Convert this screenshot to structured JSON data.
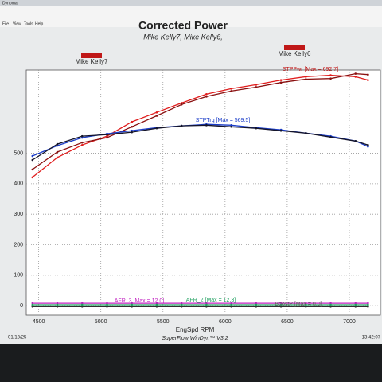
{
  "window_title": "Dynomat",
  "menu": [
    "File",
    "View",
    "Tools",
    "Help"
  ],
  "footer": {
    "date": "01/13/25",
    "software": "SuperFlow WinDyn™ V3.2",
    "time": "13:42:07"
  },
  "chart_data": {
    "type": "line",
    "title": "Corrected Power",
    "subtitle": "Mike Kelly7, Mike Kelly6,",
    "x_label": "EngSpd RPM",
    "legend": [
      {
        "name": "Mike Kelly7",
        "color": "#c01818"
      },
      {
        "name": "Mike Kelly6",
        "color": "#c01818"
      }
    ],
    "x": [
      4450,
      4650,
      4850,
      5050,
      5250,
      5450,
      5650,
      5850,
      6050,
      6250,
      6450,
      6650,
      6850,
      7050,
      7150
    ],
    "series": [
      {
        "color": "#e01c1c",
        "values": [
          421,
          486,
          527,
          556,
          603,
          634,
          665,
          694,
          712,
          725,
          740,
          751,
          756,
          751,
          740
        ]
      },
      {
        "color": "#8a1010",
        "values": [
          447,
          504,
          535,
          551,
          587,
          623,
          660,
          686,
          704,
          717,
          732,
          743,
          745,
          761,
          758
        ]
      },
      {
        "color": "#1a3cc8",
        "values": [
          491,
          525,
          551,
          564,
          574,
          584,
          590,
          595,
          592,
          584,
          577,
          566,
          556,
          540,
          522
        ]
      },
      {
        "color": "#15152a",
        "values": [
          478,
          530,
          556,
          561,
          569,
          582,
          590,
          592,
          587,
          582,
          574,
          566,
          553,
          540,
          527
        ]
      },
      {
        "color": "#c020c0",
        "values": [
          8,
          8,
          8,
          8,
          8,
          8,
          8,
          8,
          8,
          8,
          8,
          8,
          8,
          8,
          8
        ]
      },
      {
        "color": "#20a060",
        "values": [
          3,
          3,
          3,
          3,
          3,
          3,
          3,
          3,
          3,
          3,
          3,
          3,
          3,
          3,
          3
        ]
      },
      {
        "color": "#303030",
        "values": [
          -3,
          -3,
          -3,
          -3,
          -3,
          -3,
          -3,
          -3,
          -3,
          -3,
          -3,
          -3,
          -3,
          -3,
          -3
        ]
      }
    ],
    "annotations": [
      {
        "text": "STPPwr [Max = 692.7]",
        "color": "#c01818"
      },
      {
        "text": "STPTrq [Max = 569.5]",
        "color": "#1a3cc8"
      },
      {
        "text": "AFR_3 [Max = 12.0]",
        "color": "#c020c0"
      },
      {
        "text": "AFR_2 [Max = 12.3]",
        "color": "#20a060"
      },
      {
        "text": "BoostP [Max = 0.0]",
        "color": "#606060"
      }
    ],
    "xlim": [
      4400,
      7250
    ],
    "xticks": [
      4500,
      5000,
      5500,
      6000,
      6500,
      7000
    ],
    "ylim": [
      -31,
      773
    ],
    "yticks": [
      0,
      100,
      200,
      300,
      400,
      500
    ],
    "grid": true
  }
}
